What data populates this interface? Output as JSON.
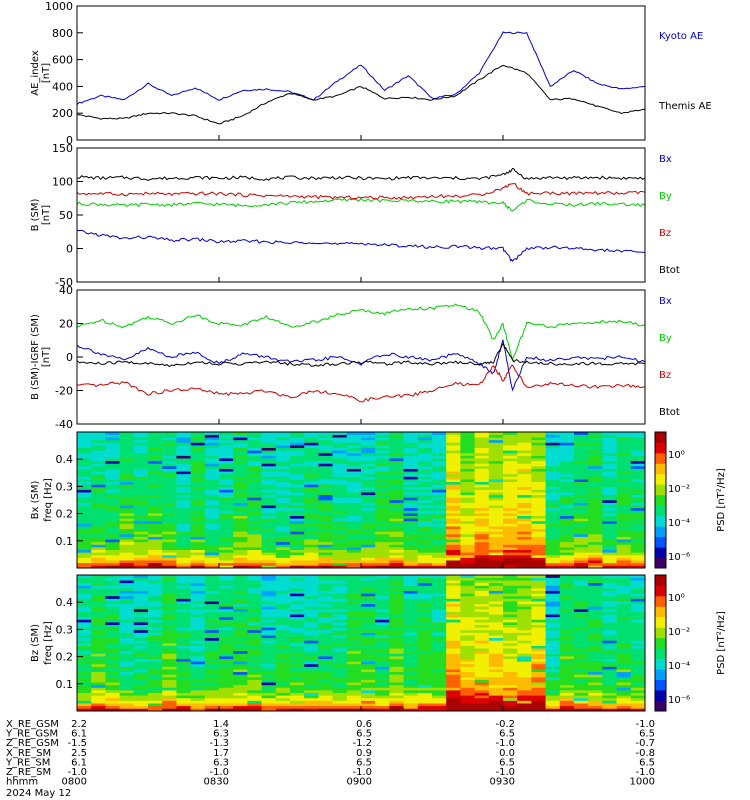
{
  "title": "",
  "panels": {
    "ae": {
      "ylabel_lines": [
        "AE_index",
        "[nT]"
      ],
      "legend": [
        {
          "label": "Kyoto AE",
          "color": "#0000cc"
        },
        {
          "label": "Themis AE",
          "color": "#000000"
        }
      ]
    },
    "bsm": {
      "ylabel_lines": [
        "B (SM)",
        "[nT]"
      ],
      "legend": [
        {
          "label": "Bx",
          "color": "#0000cc"
        },
        {
          "label": "By",
          "color": "#00cc00"
        },
        {
          "label": "Bz",
          "color": "#cc0000"
        },
        {
          "label": "Btot",
          "color": "#000000"
        }
      ]
    },
    "bigrf": {
      "ylabel_lines": [
        "B (SM)-IGRF (SM)",
        "[nT]"
      ],
      "legend": [
        {
          "label": "Bx",
          "color": "#0000cc"
        },
        {
          "label": "By",
          "color": "#00cc00"
        },
        {
          "label": "Bz",
          "color": "#cc0000"
        },
        {
          "label": "Btot",
          "color": "#000000"
        }
      ]
    },
    "specbx": {
      "ylabel_lines": [
        "Bx (SM)",
        "freq [Hz]"
      ],
      "colorbar_label": "PSD [nT²/Hz]",
      "colorbar_ticks": [
        "10⁰",
        "10⁻²",
        "10⁻⁴",
        "10⁻⁶"
      ]
    },
    "specbz": {
      "ylabel_lines": [
        "Bz (SM)",
        "freq [Hz]"
      ],
      "colorbar_label": "PSD [nT²/Hz]",
      "colorbar_ticks": [
        "10⁰",
        "10⁻²",
        "10⁻⁴",
        "10⁻⁶"
      ]
    }
  },
  "ephemeris": {
    "row_labels": [
      "X_RE_GSM",
      "Y_RE_GSM",
      "Z_RE_GSM",
      "X_RE_SM",
      "Y_RE_SM",
      "Z_RE_SM",
      "hhmm"
    ],
    "columns": [
      [
        "2.2",
        "6.1",
        "-1.5",
        "2.5",
        "6.1",
        "-1.0",
        "0800"
      ],
      [
        "1.4",
        "6.3",
        "-1.3",
        "1.7",
        "6.3",
        "-1.0",
        "0830"
      ],
      [
        "0.6",
        "6.5",
        "-1.2",
        "0.9",
        "6.5",
        "-1.0",
        "0900"
      ],
      [
        "-0.2",
        "6.5",
        "-1.0",
        "0.0",
        "6.5",
        "-1.0",
        "0930"
      ],
      [
        "-1.0",
        "6.5",
        "-0.7",
        "-0.8",
        "6.5",
        "-1.0",
        "1000"
      ]
    ],
    "date": "2024 May 12"
  },
  "chart_data": [
    {
      "type": "line",
      "title": "",
      "ylabel": "AE_index [nT]",
      "xlim": [
        0,
        120
      ],
      "ylim": [
        0,
        1000
      ],
      "yticks": [
        0,
        200,
        400,
        600,
        800,
        1000
      ],
      "x": [
        0,
        5,
        10,
        15,
        20,
        25,
        30,
        35,
        40,
        45,
        50,
        55,
        60,
        65,
        70,
        75,
        80,
        85,
        90,
        95,
        100,
        105,
        110,
        115,
        120
      ],
      "series": [
        {
          "name": "Kyoto AE",
          "color": "#0000cc",
          "values": [
            270,
            330,
            300,
            420,
            330,
            390,
            300,
            370,
            380,
            360,
            300,
            440,
            560,
            370,
            480,
            310,
            340,
            500,
            800,
            800,
            400,
            520,
            420,
            380,
            400
          ]
        },
        {
          "name": "Themis AE",
          "color": "#000000",
          "values": [
            190,
            160,
            160,
            200,
            200,
            180,
            120,
            180,
            280,
            350,
            300,
            330,
            400,
            310,
            320,
            300,
            330,
            450,
            560,
            500,
            300,
            310,
            250,
            200,
            230
          ]
        }
      ]
    },
    {
      "type": "line",
      "title": "",
      "ylabel": "B (SM) [nT]",
      "xlim": [
        0,
        120
      ],
      "ylim": [
        -50,
        150
      ],
      "yticks": [
        -50,
        0,
        50,
        100,
        150
      ],
      "x": [
        0,
        5,
        10,
        15,
        20,
        25,
        30,
        35,
        40,
        45,
        50,
        55,
        60,
        65,
        70,
        75,
        80,
        85,
        90,
        92,
        95,
        100,
        105,
        110,
        115,
        120
      ],
      "series": [
        {
          "name": "Btot",
          "color": "#000000",
          "values": [
            107,
            105,
            106,
            104,
            105,
            106,
            105,
            106,
            104,
            106,
            105,
            106,
            105,
            104,
            106,
            105,
            105,
            104,
            110,
            118,
            104,
            106,
            105,
            106,
            105,
            105
          ]
        },
        {
          "name": "By",
          "color": "#00cc00",
          "values": [
            67,
            66,
            64,
            66,
            65,
            67,
            66,
            64,
            66,
            68,
            70,
            72,
            73,
            71,
            72,
            70,
            71,
            69,
            68,
            56,
            72,
            66,
            65,
            67,
            66,
            65
          ]
        },
        {
          "name": "Bz",
          "color": "#cc0000",
          "values": [
            82,
            82,
            81,
            82,
            81,
            82,
            82,
            80,
            79,
            78,
            77,
            76,
            76,
            76,
            76,
            78,
            78,
            80,
            90,
            98,
            82,
            83,
            82,
            83,
            82,
            84
          ]
        },
        {
          "name": "Bx",
          "color": "#0000cc",
          "values": [
            26,
            20,
            15,
            17,
            12,
            14,
            10,
            11,
            10,
            8,
            10,
            6,
            8,
            5,
            4,
            2,
            3,
            1,
            0,
            -20,
            0,
            2,
            0,
            -2,
            -4,
            -6
          ]
        }
      ]
    },
    {
      "type": "line",
      "title": "",
      "ylabel": "B (SM)-IGRF (SM) [nT]",
      "xlim": [
        0,
        120
      ],
      "ylim": [
        -40,
        40
      ],
      "yticks": [
        -40,
        -20,
        0,
        20,
        40
      ],
      "x": [
        0,
        5,
        10,
        15,
        20,
        25,
        30,
        35,
        40,
        45,
        50,
        55,
        60,
        65,
        70,
        75,
        80,
        85,
        88,
        90,
        92,
        95,
        100,
        105,
        110,
        115,
        120
      ],
      "series": [
        {
          "name": "By",
          "color": "#00cc00",
          "values": [
            18,
            22,
            18,
            24,
            20,
            25,
            20,
            19,
            24,
            18,
            21,
            25,
            28,
            26,
            29,
            29,
            31,
            27,
            10,
            20,
            -2,
            20,
            18,
            20,
            21,
            21,
            19
          ]
        },
        {
          "name": "Bx",
          "color": "#0000cc",
          "values": [
            7,
            2,
            -2,
            5,
            0,
            3,
            -4,
            2,
            0,
            -3,
            -2,
            0,
            -4,
            2,
            0,
            -2,
            2,
            -4,
            -10,
            10,
            -20,
            0,
            -2,
            0,
            -1,
            0,
            -3
          ]
        },
        {
          "name": "Btot",
          "color": "#000000",
          "values": [
            -3,
            -4,
            -3,
            -4,
            -5,
            -3,
            -4,
            -4,
            -3,
            -4,
            -5,
            -4,
            -3,
            -4,
            -3,
            -4,
            -3,
            -4,
            -3,
            8,
            -2,
            -3,
            -4,
            -4,
            -4,
            -4,
            -4
          ]
        },
        {
          "name": "Bz",
          "color": "#cc0000",
          "values": [
            -17,
            -17,
            -15,
            -22,
            -20,
            -19,
            -22,
            -22,
            -20,
            -24,
            -20,
            -22,
            -26,
            -24,
            -23,
            -20,
            -16,
            -17,
            -5,
            -14,
            -5,
            -18,
            -16,
            -17,
            -18,
            -17,
            -18
          ]
        }
      ]
    },
    {
      "type": "heatmap",
      "title": "",
      "ylabel": "Bx (SM) freq [Hz]",
      "xlim": [
        0,
        120
      ],
      "ylim": [
        0,
        0.5
      ],
      "yticks": [
        0.1,
        0.2,
        0.3,
        0.4
      ],
      "colorbar": {
        "label": "PSD [nT²/Hz]",
        "scale": "log",
        "range": [
          1e-07,
          10
        ]
      },
      "active_interval": [
        78,
        100
      ]
    },
    {
      "type": "heatmap",
      "title": "",
      "ylabel": "Bz (SM) freq [Hz]",
      "xlim": [
        0,
        120
      ],
      "ylim": [
        0,
        0.5
      ],
      "yticks": [
        0.1,
        0.2,
        0.3,
        0.4
      ],
      "colorbar": {
        "label": "PSD [nT²/Hz]",
        "scale": "log",
        "range": [
          1e-07,
          10
        ]
      },
      "active_interval": [
        78,
        100
      ]
    }
  ]
}
